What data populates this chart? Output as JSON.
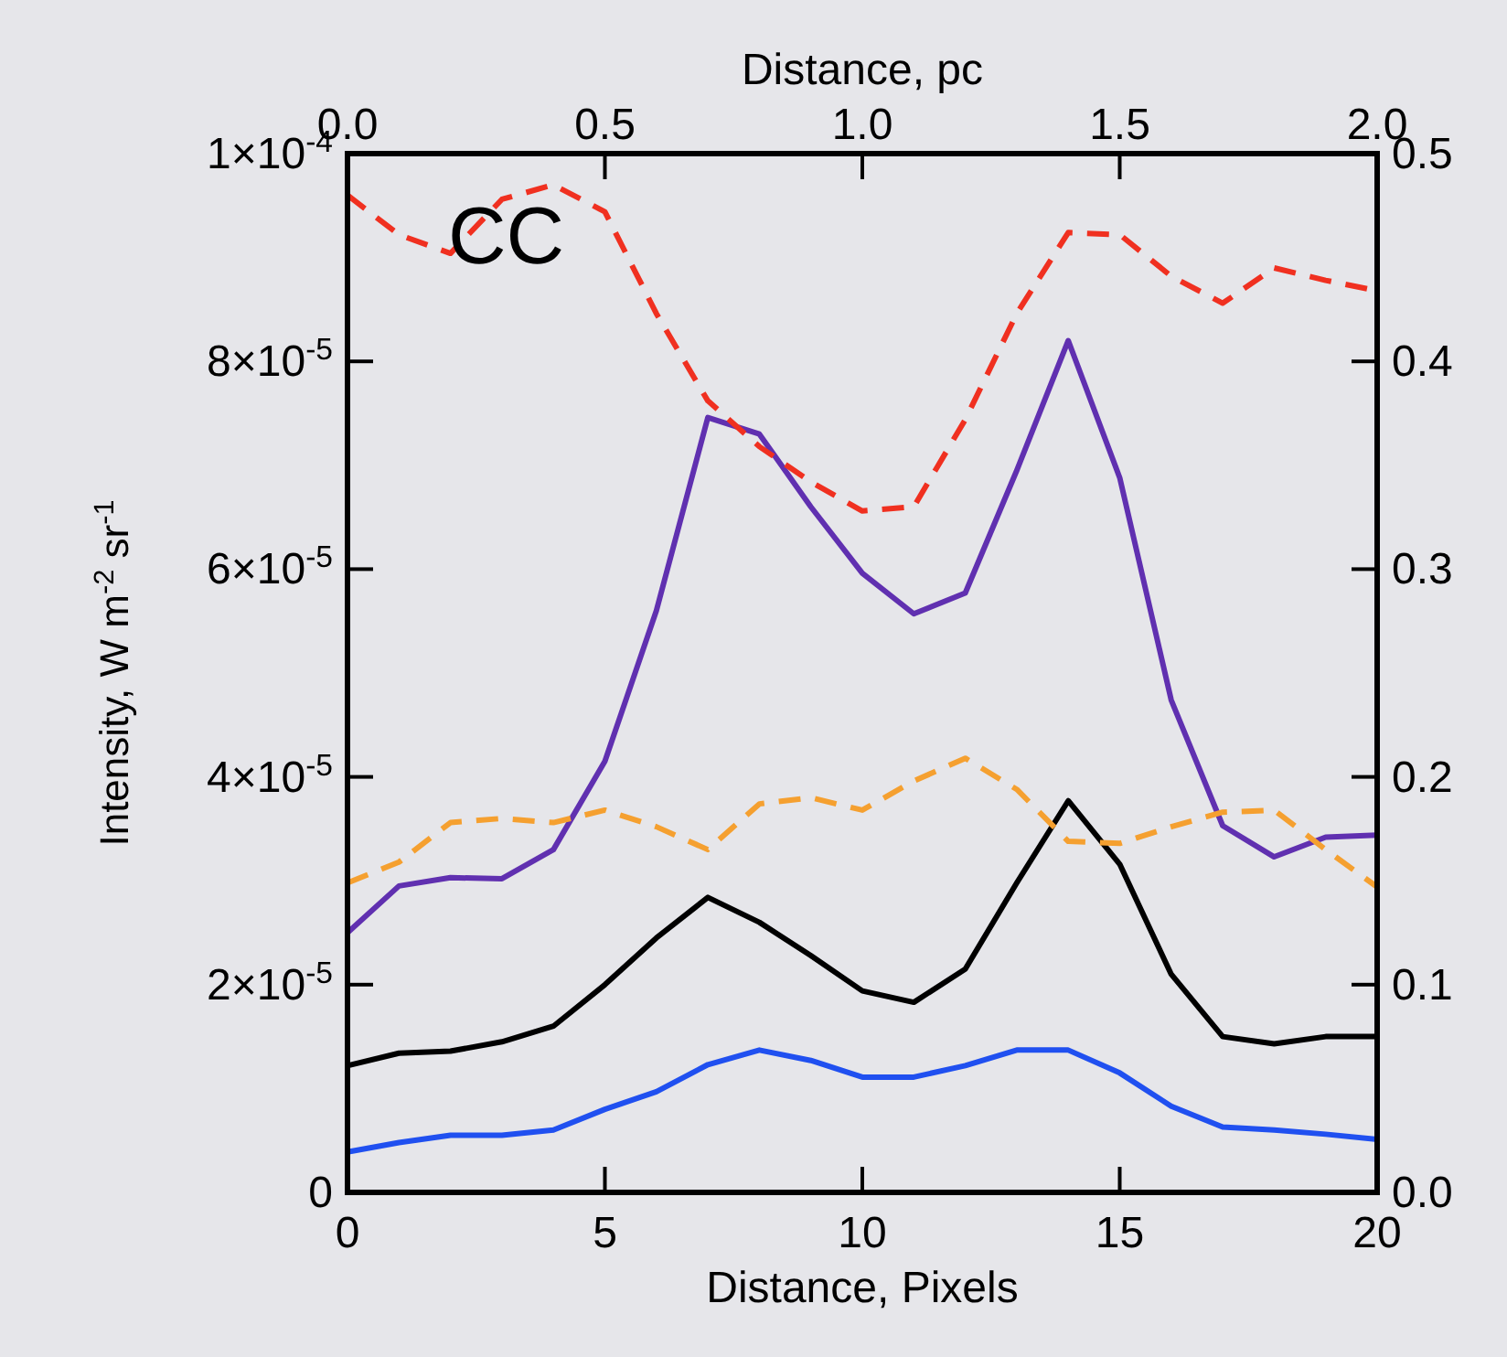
{
  "chart_data": {
    "type": "line",
    "xlabel": "Distance, Pixels",
    "x2label": "Distance, pc",
    "ylabel": "Intensity, W m$^{-2}$ sr$^{-1}$",
    "annotations": [
      "CC"
    ],
    "x": [
      0,
      1,
      2,
      3,
      4,
      5,
      6,
      7,
      8,
      9,
      10,
      11,
      12,
      13,
      14,
      15,
      16,
      17,
      18,
      19,
      20
    ],
    "xlim": [
      0,
      20
    ],
    "xticks": [
      0,
      5,
      10,
      15,
      20
    ],
    "x2lim": [
      0,
      2
    ],
    "x2ticks": [
      {
        "value": 0,
        "label": "0.0"
      },
      {
        "value": 0.5,
        "label": "0.5"
      },
      {
        "value": 1,
        "label": "1.0"
      },
      {
        "value": 1.5,
        "label": "1.5"
      },
      {
        "value": 2,
        "label": "2.0"
      }
    ],
    "ylim": [
      0,
      0.0001
    ],
    "yticks": [
      0,
      {
        "value": 2e-05,
        "label": "2×10$^{-5}$"
      },
      {
        "value": 4e-05,
        "label": "4×10$^{-5}$"
      },
      {
        "value": 6e-05,
        "label": "6×10$^{-5}$"
      },
      {
        "value": 8e-05,
        "label": "8×10$^{-5}$"
      },
      {
        "value": 0.0001,
        "label": "1×10$^{-4}$"
      }
    ],
    "y2lim": [
      0,
      0.5
    ],
    "y2ticks": [
      {
        "value": 0,
        "label": "0.0"
      },
      {
        "value": 0.1,
        "label": "0.1"
      },
      {
        "value": 0.2,
        "label": "0.2"
      },
      {
        "value": 0.3,
        "label": "0.3"
      },
      {
        "value": 0.4,
        "label": "0.4"
      },
      {
        "value": 0.5,
        "label": "0.5"
      }
    ],
    "grid": false,
    "marker": "none",
    "series": [
      {
        "color": "#6030b0",
        "line_style": "solid",
        "values": [
          2.5e-05,
          2.95e-05,
          3.03e-05,
          3.02e-05,
          3.3e-05,
          4.15e-05,
          5.6e-05,
          7.46e-05,
          7.3e-05,
          6.6e-05,
          5.96e-05,
          5.57e-05,
          5.77e-05,
          6.95e-05,
          8.2e-05,
          6.88e-05,
          4.74e-05,
          3.53e-05,
          3.23e-05,
          3.42e-05,
          3.44e-05
        ]
      },
      {
        "color": "#000000",
        "line_style": "solid",
        "values": [
          1.22e-05,
          1.34e-05,
          1.36e-05,
          1.45e-05,
          1.6e-05,
          2e-05,
          2.45e-05,
          2.84e-05,
          2.6e-05,
          2.28e-05,
          1.94e-05,
          1.83e-05,
          2.15e-05,
          2.98e-05,
          3.77e-05,
          3.16e-05,
          2.1e-05,
          1.5e-05,
          1.43e-05,
          1.5e-05,
          1.5e-05
        ]
      },
      {
        "color": "#2050f0",
        "line_style": "solid",
        "values": [
          3.9e-06,
          4.8e-06,
          5.5e-06,
          5.5e-06,
          6e-06,
          8e-06,
          9.7e-06,
          1.23e-05,
          1.37e-05,
          1.27e-05,
          1.11e-05,
          1.11e-05,
          1.22e-05,
          1.37e-05,
          1.37e-05,
          1.15e-05,
          8.3e-06,
          6.3e-06,
          6e-06,
          5.6e-06,
          5.1e-06
        ]
      },
      {
        "color": "#f5a030",
        "line_style": "dashed",
        "axis": "y2",
        "values": [
          0.149,
          0.159,
          0.178,
          0.18,
          0.178,
          0.184,
          0.176,
          0.165,
          0.187,
          0.19,
          0.184,
          0.198,
          0.209,
          0.194,
          0.169,
          0.168,
          0.176,
          0.183,
          0.184,
          0.165,
          0.147
        ]
      },
      {
        "color": "#f03020",
        "line_style": "dashed",
        "axis": "y2",
        "values": [
          0.48,
          0.461,
          0.452,
          0.478,
          0.485,
          0.472,
          0.423,
          0.381,
          0.359,
          0.342,
          0.328,
          0.33,
          0.372,
          0.423,
          0.462,
          0.461,
          0.441,
          0.428,
          0.445,
          0.439,
          0.434
        ]
      }
    ]
  }
}
